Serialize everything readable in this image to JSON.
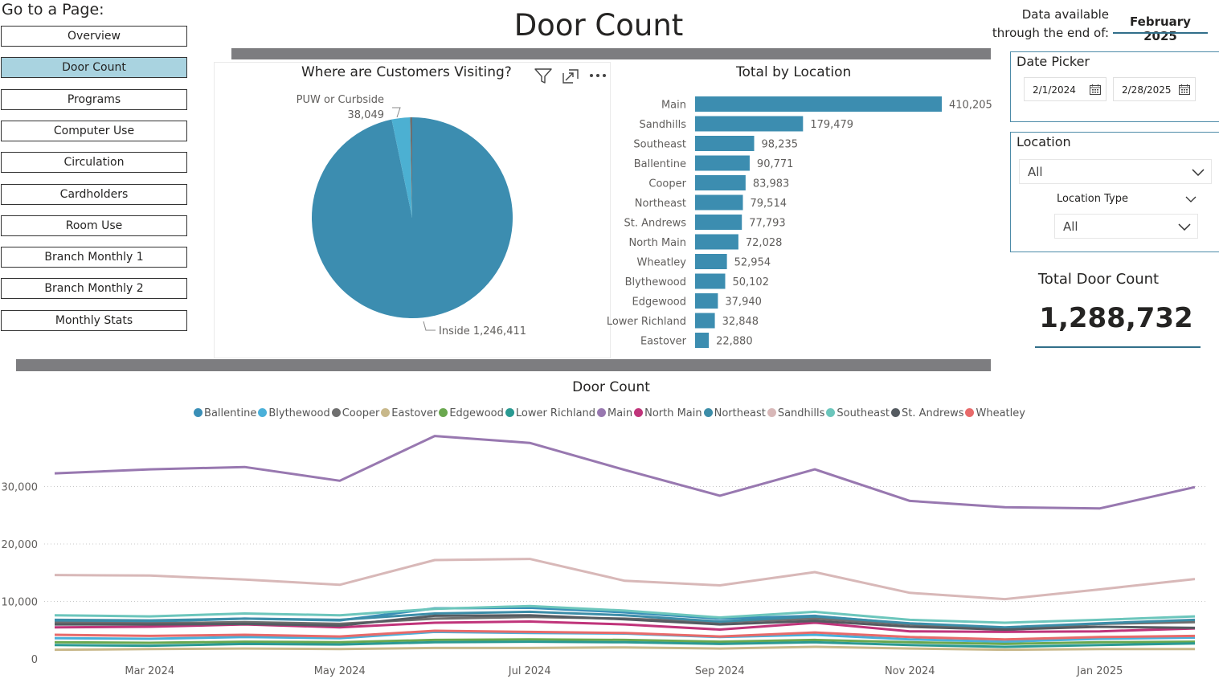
{
  "nav": {
    "heading": "Go to a Page:",
    "items": [
      "Overview",
      "Door Count",
      "Programs",
      "Computer Use",
      "Circulation",
      "Cardholders",
      "Room Use",
      "Branch Monthly 1",
      "Branch Monthly 2",
      "Monthly Stats"
    ],
    "active": "Door Count"
  },
  "page_title": "Door Count",
  "data_available": {
    "label_line1": "Data available",
    "label_line2": "through the end of:",
    "value": "February 2025"
  },
  "date_picker": {
    "title": "Date Picker",
    "start": "2/1/2024",
    "end": "2/28/2025"
  },
  "location_filter": {
    "title": "Location",
    "value": "All",
    "type_title": "Location Type",
    "type_value": "All"
  },
  "kpi": {
    "title": "Total Door Count",
    "value": "1,288,732"
  },
  "icons": {
    "filter": "filter-icon",
    "focus": "focus-mode-icon",
    "more": "more-options-icon",
    "calendar": "calendar-icon",
    "chevron": "chevron-down-icon"
  },
  "colors": {
    "accent": "#3c8db0",
    "active_nav": "#a9d3e0",
    "divider": "#7d7d80"
  },
  "chart_data": [
    {
      "type": "pie",
      "title": "Where are Customers Visiting?",
      "slices": [
        {
          "label": "Inside",
          "value": 1246411,
          "display": "1,246,411",
          "color": "#3c8db0"
        },
        {
          "label": "PUW or Curbside",
          "value": 38049,
          "display": "38,049",
          "color": "#4cb0d2"
        },
        {
          "label": "",
          "value": 4272,
          "display": "",
          "color": "#6e6e6e"
        }
      ]
    },
    {
      "type": "bar",
      "orientation": "horizontal",
      "title": "Total by Location",
      "categories": [
        "Main",
        "Sandhills",
        "Southeast",
        "Ballentine",
        "Cooper",
        "Northeast",
        "St. Andrews",
        "North Main",
        "Wheatley",
        "Blythewood",
        "Edgewood",
        "Lower Richland",
        "Eastover"
      ],
      "values": [
        410205,
        179479,
        98235,
        90771,
        83983,
        79514,
        77793,
        72028,
        52954,
        50102,
        37940,
        32848,
        22880
      ],
      "labels": [
        "410,205",
        "179,479",
        "98,235",
        "90,771",
        "83,983",
        "79,514",
        "77,793",
        "72,028",
        "52,954",
        "50,102",
        "37,940",
        "32,848",
        "22,880"
      ],
      "color": "#3c8db0"
    },
    {
      "type": "line",
      "title": "Door Count",
      "x": [
        "Feb 2024",
        "Mar 2024",
        "Apr 2024",
        "May 2024",
        "Jun 2024",
        "Jul 2024",
        "Aug 2024",
        "Sep 2024",
        "Oct 2024",
        "Nov 2024",
        "Dec 2024",
        "Jan 2025",
        "Feb 2025"
      ],
      "x_tick_labels": [
        "Mar 2024",
        "May 2024",
        "Jul 2024",
        "Sep 2024",
        "Nov 2024",
        "Jan 2025"
      ],
      "y_ticks": [
        0,
        10000,
        20000,
        30000
      ],
      "y_tick_labels": [
        "0",
        "10,000",
        "20,000",
        "30,000"
      ],
      "ylim": [
        0,
        40000
      ],
      "grid": true,
      "legend_position": "top",
      "series": [
        {
          "name": "Ballentine",
          "color": "#3a8fb7",
          "values": [
            6600,
            6500,
            7000,
            6700,
            8800,
            8900,
            8100,
            7000,
            7500,
            6100,
            5300,
            6100,
            6700
          ]
        },
        {
          "name": "Blythewood",
          "color": "#4ab0d9",
          "values": [
            3600,
            3500,
            3800,
            3600,
            4700,
            4500,
            4400,
            3800,
            4200,
            3400,
            3000,
            3500,
            3700
          ]
        },
        {
          "name": "Cooper",
          "color": "#6f6f6f",
          "values": [
            6300,
            6200,
            6400,
            6100,
            7000,
            7300,
            7000,
            6400,
            7000,
            6000,
            5000,
            6100,
            6400
          ]
        },
        {
          "name": "Eastover",
          "color": "#c8b88a",
          "values": [
            1600,
            1700,
            1800,
            1700,
            1900,
            1900,
            2000,
            1800,
            2100,
            1800,
            1600,
            1700,
            1700
          ]
        },
        {
          "name": "Edgewood",
          "color": "#6aa84f",
          "values": [
            2900,
            2800,
            3000,
            2900,
            3300,
            3400,
            3300,
            3000,
            3300,
            2900,
            2600,
            2900,
            3000
          ]
        },
        {
          "name": "Lower Richland",
          "color": "#2a9a92",
          "values": [
            2400,
            2300,
            2600,
            2500,
            2900,
            3000,
            2900,
            2600,
            2900,
            2400,
            2100,
            2400,
            2700
          ]
        },
        {
          "name": "Main",
          "color": "#9878b0",
          "values": [
            32300,
            33000,
            33400,
            31000,
            38800,
            37600,
            32900,
            28400,
            33000,
            27500,
            26400,
            26200,
            29900
          ]
        },
        {
          "name": "North Main",
          "color": "#c0347a",
          "values": [
            5500,
            5600,
            6000,
            5500,
            6300,
            6500,
            6000,
            5100,
            6300,
            4800,
            4700,
            4800,
            5300
          ]
        },
        {
          "name": "Northeast",
          "color": "#3c8da8",
          "values": [
            6800,
            6700,
            7000,
            6800,
            7900,
            8200,
            7600,
            6500,
            7400,
            6200,
            5500,
            6200,
            6800
          ]
        },
        {
          "name": "Sandhills",
          "color": "#d8b8b8",
          "values": [
            14600,
            14500,
            13800,
            12900,
            17200,
            17400,
            13600,
            12800,
            15100,
            11500,
            10400,
            12100,
            13900
          ]
        },
        {
          "name": "Southeast",
          "color": "#6cc6bc",
          "values": [
            7600,
            7400,
            7900,
            7600,
            8700,
            9200,
            8400,
            7200,
            8200,
            6800,
            6300,
            6800,
            7400
          ]
        },
        {
          "name": "St. Andrews",
          "color": "#555b61",
          "values": [
            6000,
            6000,
            6100,
            5800,
            7500,
            7600,
            6900,
            6000,
            6600,
            5600,
            5100,
            5600,
            5400
          ]
        },
        {
          "name": "Wheatley",
          "color": "#e86a6a",
          "values": [
            4200,
            4000,
            4200,
            3900,
            4900,
            4700,
            4500,
            3900,
            4600,
            3800,
            3400,
            3800,
            4000
          ]
        }
      ]
    }
  ]
}
